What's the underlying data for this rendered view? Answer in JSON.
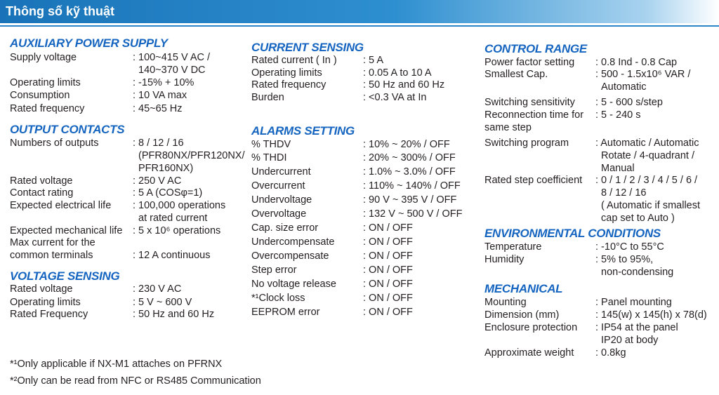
{
  "header": {
    "title": "Thông số kỹ thuật"
  },
  "columns": [
    {
      "sections": [
        {
          "title": "AUXILIARY POWER SUPPLY",
          "rows": [
            {
              "label": [
                "Supply voltage"
              ],
              "value": [
                ": 100~415 V AC /",
                "140~370 V DC"
              ]
            },
            {
              "label": [
                "Operating limits"
              ],
              "value": [
                ": -15% + 10%"
              ]
            },
            {
              "label": [
                "Consumption"
              ],
              "value": [
                ": 10 VA max"
              ]
            },
            {
              "label": [
                "Rated frequency"
              ],
              "value": [
                ": 45~65 Hz"
              ]
            }
          ]
        },
        {
          "title": "OUTPUT CONTACTS",
          "rows": [
            {
              "label": [
                "Numbers of outputs"
              ],
              "value": [
                ": 8 / 12 / 16",
                "(PFR80NX/PFR120NX/",
                "PFR160NX)"
              ]
            },
            {
              "label": [
                "Rated voltage"
              ],
              "value": [
                ": 250 V AC"
              ]
            },
            {
              "label": [
                "Contact rating"
              ],
              "value": [
                ": 5 A (COSφ=1)"
              ]
            },
            {
              "label": [
                "Expected electrical life"
              ],
              "value": [
                ": 100,000 operations",
                "at rated current"
              ]
            },
            {
              "label": [
                "Expected mechanical life"
              ],
              "value": [
                ": 5 x 10⁶ operations"
              ]
            },
            {
              "label": [
                "Max current for the",
                "common terminals"
              ],
              "value": [
                ": 12 A continuous"
              ]
            }
          ]
        },
        {
          "title": "VOLTAGE SENSING",
          "rows": [
            {
              "label": [
                "Rated voltage"
              ],
              "value": [
                ": 230 V AC"
              ]
            },
            {
              "label": [
                "Operating limits"
              ],
              "value": [
                ": 5 V ~ 600 V"
              ]
            },
            {
              "label": [
                "Rated Frequency"
              ],
              "value": [
                ": 50 Hz and 60 Hz"
              ]
            }
          ]
        }
      ]
    },
    {
      "sections": [
        {
          "title": "CURRENT SENSING",
          "rows": [
            {
              "label": [
                "Rated current ( In )"
              ],
              "value": [
                ": 5 A"
              ]
            },
            {
              "label": [
                "Operating limits"
              ],
              "value": [
                ": 0.05 A to 10 A"
              ]
            },
            {
              "label": [
                "Rated frequency"
              ],
              "value": [
                ": 50 Hz and 60 Hz"
              ]
            },
            {
              "label": [
                "Burden"
              ],
              "value": [
                ": <0.3 VA at In"
              ]
            }
          ]
        },
        {
          "title": "ALARMS SETTING",
          "rows": [
            {
              "label": [
                "% THDV"
              ],
              "value": [
                ": 10% ~ 20% / OFF"
              ]
            },
            {
              "label": [
                "% THDI"
              ],
              "value": [
                ": 20% ~ 300% / OFF"
              ]
            },
            {
              "label": [
                "Undercurrent"
              ],
              "value": [
                ": 1.0% ~ 3.0% / OFF"
              ]
            },
            {
              "label": [
                "Overcurrent"
              ],
              "value": [
                ": 110% ~ 140% / OFF"
              ]
            },
            {
              "label": [
                "Undervoltage"
              ],
              "value": [
                ": 90 V ~ 395 V / OFF"
              ]
            },
            {
              "label": [
                "Overvoltage"
              ],
              "value": [
                ": 132 V ~ 500 V / OFF"
              ]
            },
            {
              "label": [
                "Cap. size error"
              ],
              "value": [
                ": ON / OFF"
              ]
            },
            {
              "label": [
                "Undercompensate"
              ],
              "value": [
                ": ON / OFF"
              ]
            },
            {
              "label": [
                "Overcompensate"
              ],
              "value": [
                ": ON / OFF"
              ]
            },
            {
              "label": [
                "Step error"
              ],
              "value": [
                ": ON / OFF"
              ]
            },
            {
              "label": [
                "No voltage release"
              ],
              "value": [
                ": ON / OFF"
              ]
            },
            {
              "label": [
                "*¹Clock loss"
              ],
              "value": [
                ": ON / OFF"
              ]
            },
            {
              "label": [
                "EEPROM error"
              ],
              "value": [
                ": ON / OFF"
              ]
            }
          ]
        }
      ]
    },
    {
      "sections": [
        {
          "title": "CONTROL RANGE",
          "rows": [
            {
              "label": [
                "Power factor setting"
              ],
              "value": [
                ": 0.8 Ind - 0.8 Cap"
              ]
            },
            {
              "label": [
                "Smallest Cap."
              ],
              "value": [
                ": 500 - 1.5x10⁶ VAR /",
                "Automatic"
              ]
            },
            {
              "label": [
                "Switching sensitivity"
              ],
              "value": [
                ": 5 - 600 s/step"
              ]
            },
            {
              "label": [
                "Reconnection time for",
                "same step"
              ],
              "value": [
                ": 5 - 240 s"
              ]
            },
            {
              "label": [
                "Switching program"
              ],
              "value": [
                ": Automatic / Automatic",
                "Rotate / 4-quadrant /",
                "Manual"
              ]
            },
            {
              "label": [
                "Rated step coefficient"
              ],
              "value": [
                ": 0 / 1 / 2 / 3 / 4 / 5 / 6 /",
                "8 / 12 / 16",
                "( Automatic if smallest",
                "cap set  to Auto )"
              ]
            }
          ]
        },
        {
          "title": "ENVIRONMENTAL CONDITIONS",
          "rows": [
            {
              "label": [
                "Temperature"
              ],
              "value": [
                ": -10°C to 55°C"
              ]
            },
            {
              "label": [
                "Humidity"
              ],
              "value": [
                ": 5% to 95%,",
                "non-condensing"
              ]
            }
          ]
        },
        {
          "title": "MECHANICAL",
          "rows": [
            {
              "label": [
                "Mounting"
              ],
              "value": [
                ": Panel mounting"
              ]
            },
            {
              "label": [
                "Dimension (mm)"
              ],
              "value": [
                ": 145(w) x 145(h) x 78(d)"
              ]
            },
            {
              "label": [
                "Enclosure protection"
              ],
              "value": [
                ": IP54 at the panel",
                "IP20 at body"
              ]
            },
            {
              "label": [
                "Approximate weight"
              ],
              "value": [
                ": 0.8kg"
              ]
            }
          ]
        }
      ]
    }
  ],
  "footnotes": [
    "*¹Only applicable if NX-M1 attaches on PFRNX",
    "*²Only can be read from NFC or RS485 Communication"
  ]
}
